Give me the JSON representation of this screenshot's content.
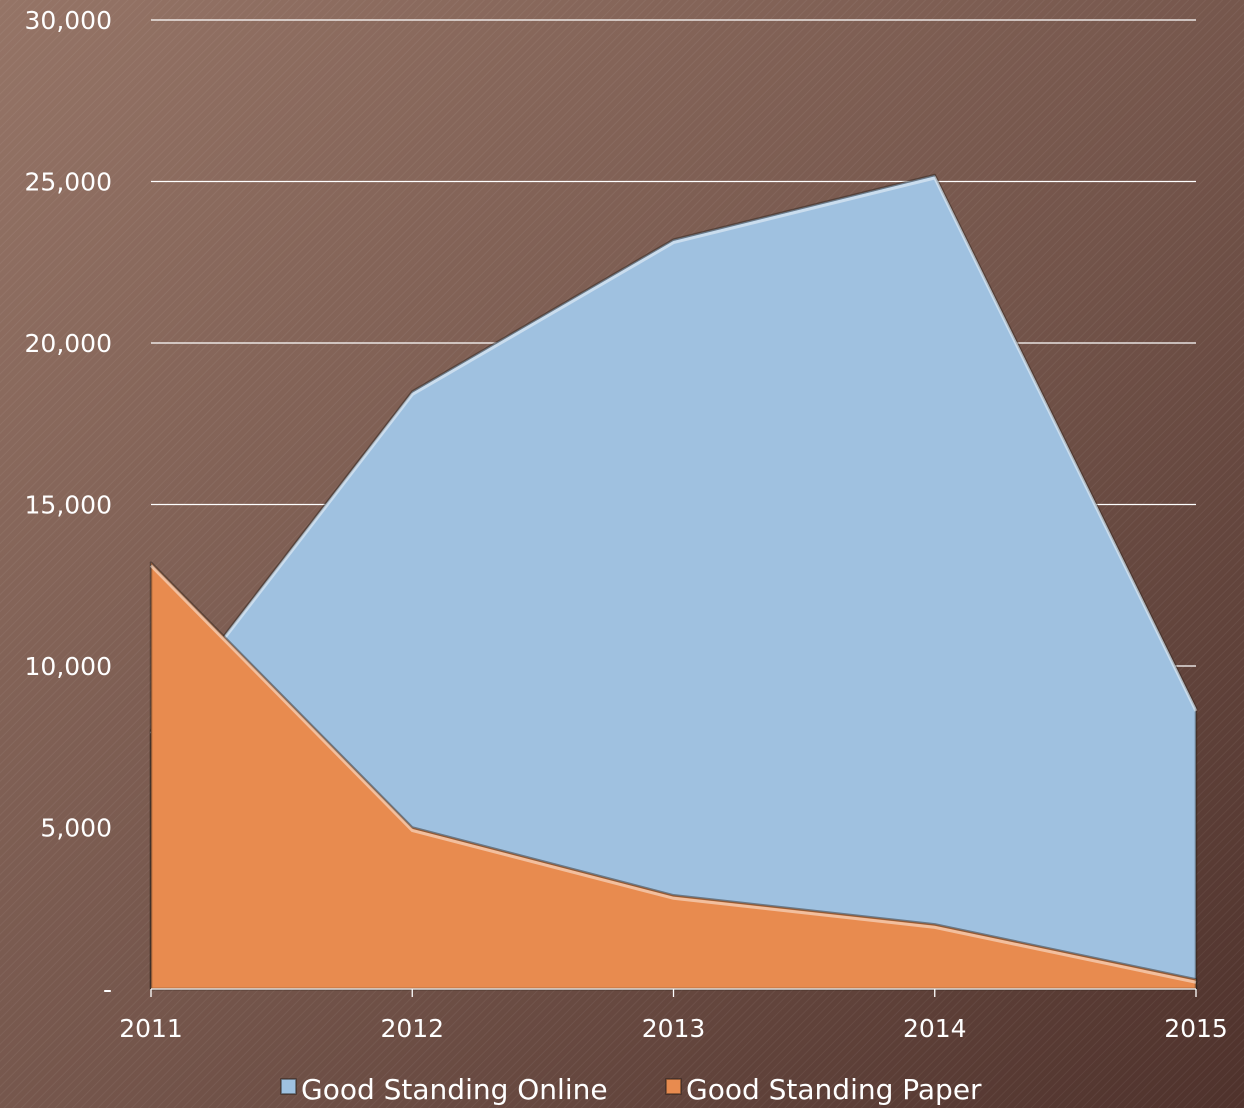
{
  "chart_data": {
    "type": "area",
    "title": "",
    "xlabel": "",
    "ylabel": "",
    "categories": [
      "2011",
      "2012",
      "2013",
      "2014",
      "2015"
    ],
    "series": [
      {
        "name": "Good Standing Online",
        "values": [
          8000,
          18500,
          23200,
          25200,
          8700
        ],
        "color": "#9fc1e0"
      },
      {
        "name": "Good Standing Paper",
        "values": [
          13200,
          5000,
          2900,
          2000,
          300
        ],
        "color": "#e88b4f"
      }
    ],
    "ylim": [
      0,
      30000
    ],
    "y_ticks": [
      {
        "value": 0,
        "label": "-"
      },
      {
        "value": 5000,
        "label": "5,000"
      },
      {
        "value": 10000,
        "label": "10,000"
      },
      {
        "value": 15000,
        "label": "15,000"
      },
      {
        "value": 20000,
        "label": "20,000"
      },
      {
        "value": 25000,
        "label": "25,000"
      },
      {
        "value": 30000,
        "label": "30,000"
      }
    ],
    "grid": true,
    "legend_position": "bottom",
    "background": "#7a5a4e"
  }
}
